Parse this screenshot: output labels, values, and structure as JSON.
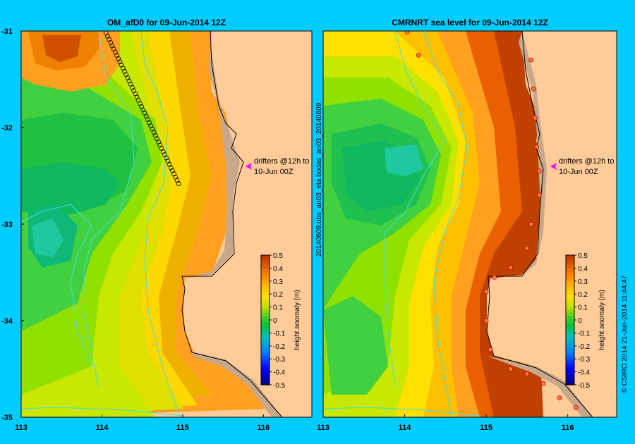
{
  "chart_data": [
    {
      "type": "heatmap",
      "title": "OM_afD0 for 09-Jun-2014 12Z",
      "xlim": [
        113,
        116.6
      ],
      "ylim": [
        -35,
        -31
      ],
      "x_ticks": [
        "113",
        "114",
        "115",
        "116"
      ],
      "y_ticks": [
        "-31",
        "-32",
        "-33",
        "-34",
        "-35"
      ],
      "annotation": [
        "drifters @12h to",
        "10-Jun 00Z"
      ],
      "colorbar": {
        "label": "height anomaly (m)",
        "range": [
          -0.5,
          0.5
        ],
        "ticks": [
          "0.5",
          "0.4",
          "0.3",
          "0.2",
          "0.1",
          "0",
          "-0.1",
          "-0.2",
          "-0.3",
          "-0.4",
          "-0.5"
        ]
      },
      "drifter_track": {
        "start": [
          114.05,
          -31.02
        ],
        "end": [
          114.95,
          -32.58
        ],
        "points": 48
      }
    },
    {
      "type": "heatmap",
      "title": "CMRNRT sea level  for 09-Jun-2014 12Z",
      "xlim": [
        113,
        116.6
      ],
      "ylim": [
        -35,
        -31
      ],
      "x_ticks": [
        "113",
        "114",
        "115",
        "116"
      ],
      "annotation": [
        "drifters @12h to",
        "10-Jun 00Z"
      ],
      "observations": [
        [
          114.03,
          -31.01
        ],
        [
          114.17,
          -31.25
        ],
        [
          115.55,
          -31.3
        ],
        [
          115.58,
          -31.6
        ],
        [
          115.6,
          -31.9
        ],
        [
          115.62,
          -32.2
        ],
        [
          115.65,
          -32.45
        ],
        [
          115.65,
          -32.7
        ],
        [
          115.55,
          -33.0
        ],
        [
          115.5,
          -33.25
        ],
        [
          115.3,
          -33.45
        ],
        [
          115.1,
          -33.55
        ],
        [
          115.0,
          -33.7
        ],
        [
          115.0,
          -34.0
        ],
        [
          115.05,
          -34.3
        ],
        [
          115.3,
          -34.5
        ],
        [
          115.5,
          -34.55
        ],
        [
          115.7,
          -34.65
        ],
        [
          115.9,
          -34.8
        ],
        [
          116.1,
          -34.9
        ]
      ],
      "colorbar": {
        "label": "height anomaly (m)",
        "range": [
          -0.5,
          0.5
        ],
        "ticks": [
          "0.5",
          "0.4",
          "0.3",
          "0.2",
          "0.1",
          "0",
          "-0.1",
          "-0.2",
          "-0.3",
          "-0.4",
          "-0.5"
        ]
      }
    }
  ],
  "side_text": "20140609.obs_an03_eta     bodas_an03_20140609",
  "credit": "© CSIRO 2014    21-Jun-2014 11:44:47",
  "colors": {
    "background": "#00ccff",
    "land": "#ffcc99",
    "coast_shelf": "#c8a88a",
    "drifter_arrow": "#ff00ff"
  }
}
